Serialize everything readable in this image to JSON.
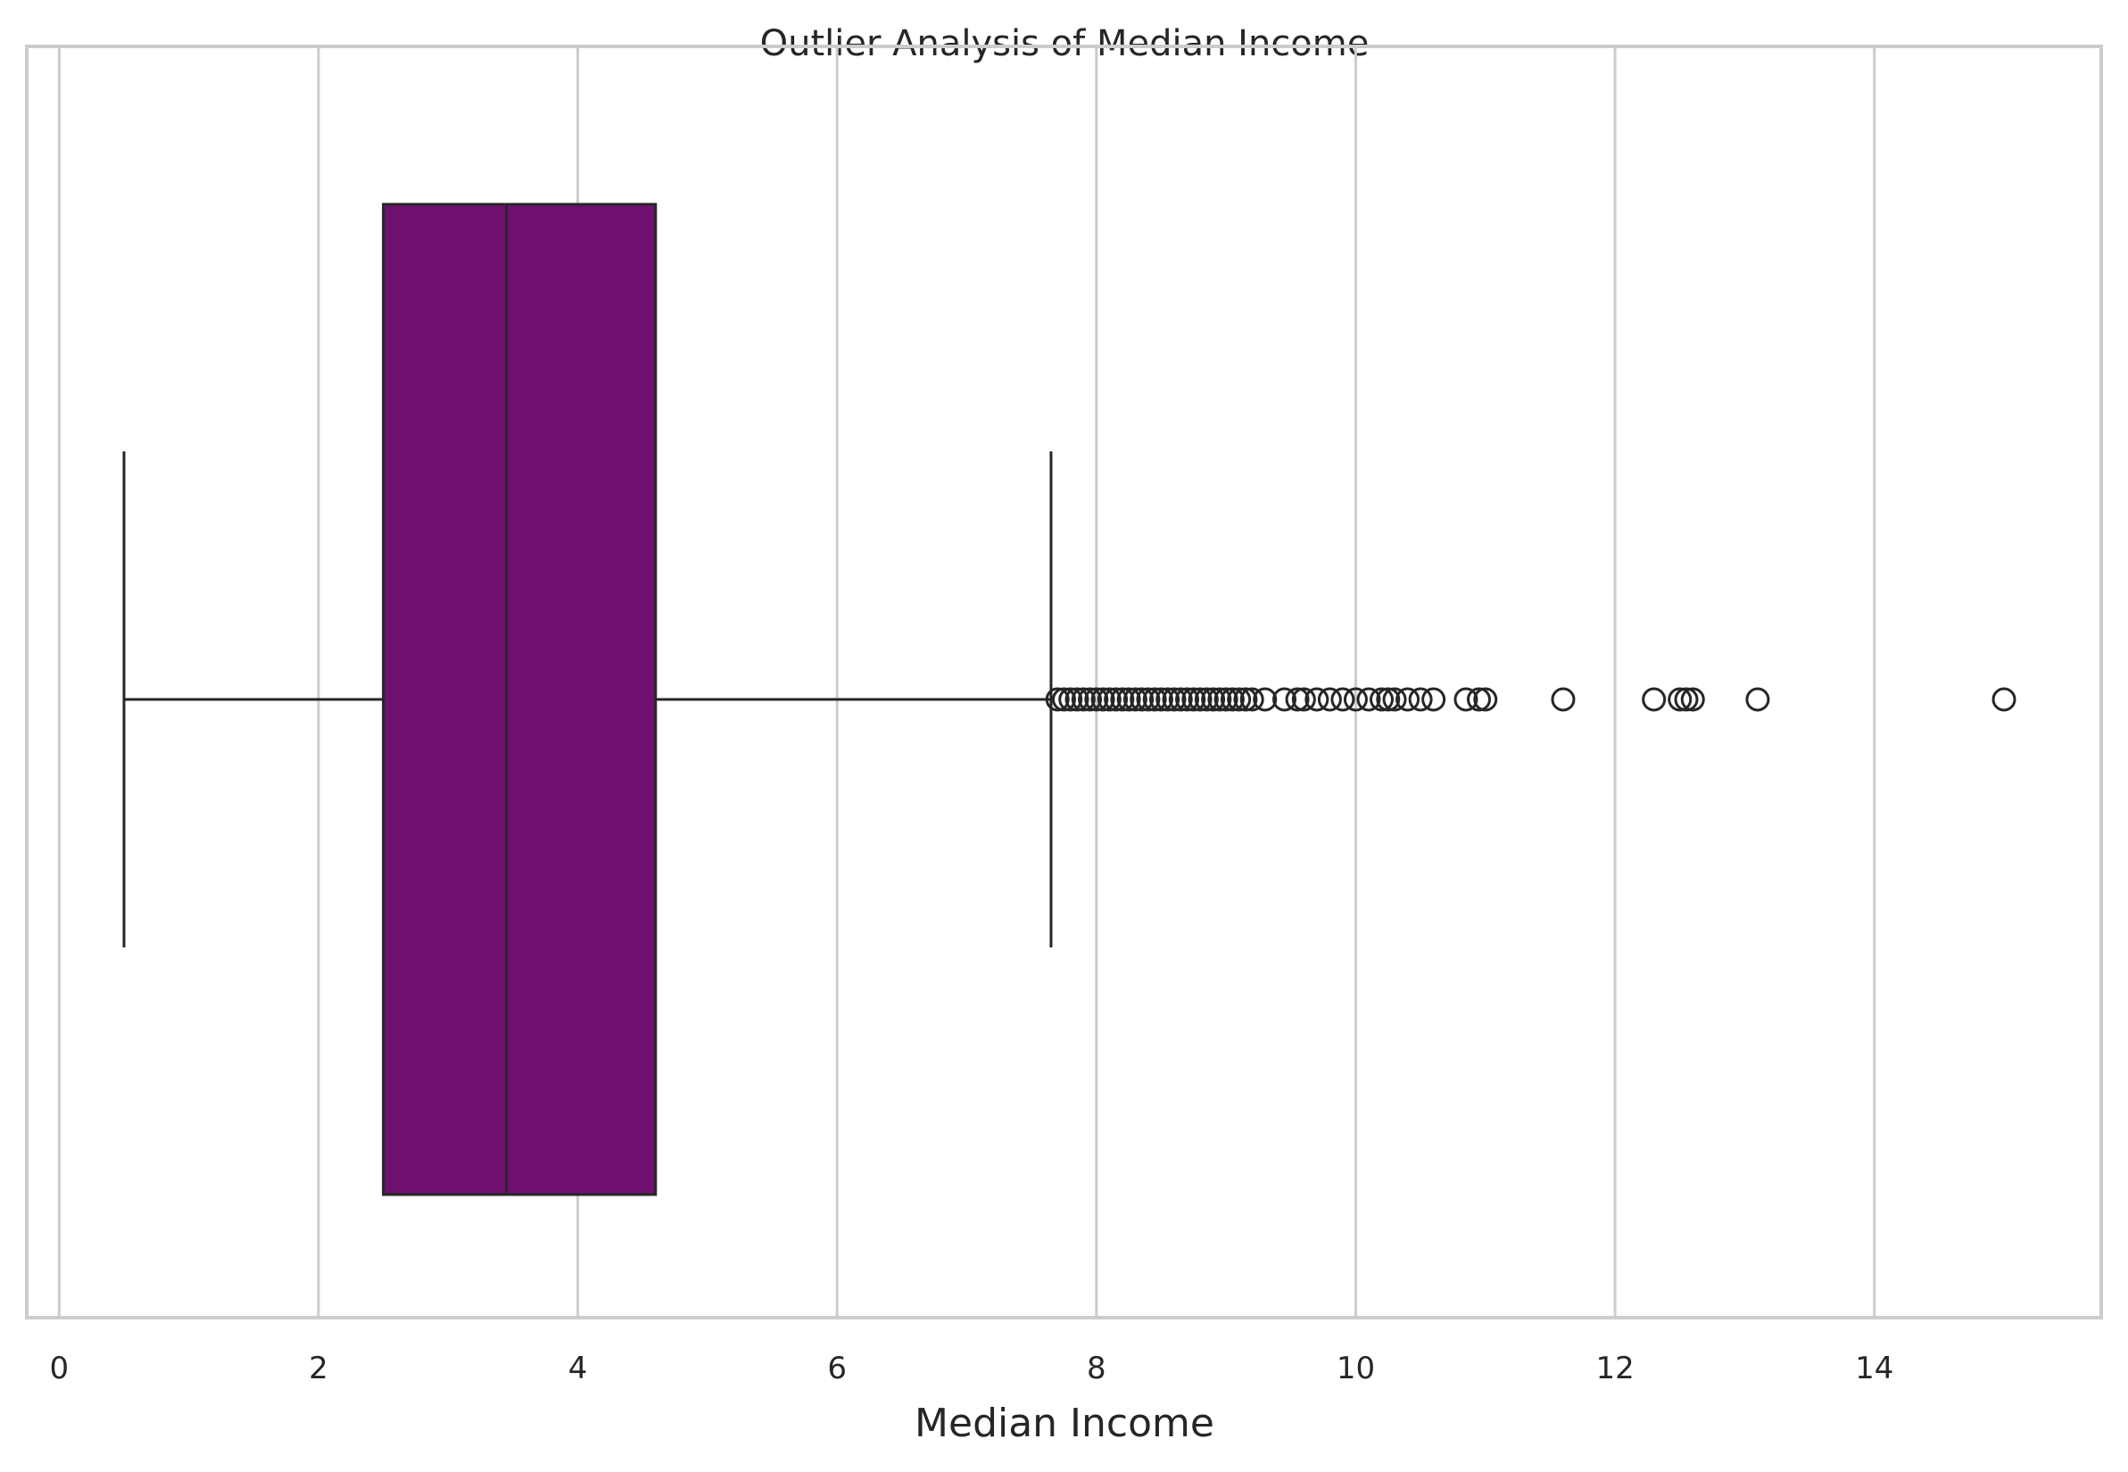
{
  "chart_data": {
    "type": "boxplot",
    "title": "Outlier Analysis of Median Income",
    "xlabel": "Median Income",
    "ylabel": "",
    "orientation": "horizontal",
    "xlim": [
      -0.25,
      15.75
    ],
    "xticks": [
      0,
      2,
      4,
      6,
      8,
      10,
      12,
      14
    ],
    "grid": "vertical",
    "box_color": "#6f106f",
    "box": {
      "whisker_low": 0.5,
      "q1": 2.5,
      "median": 3.45,
      "q3": 4.6,
      "whisker_high": 7.65
    },
    "outliers": [
      7.7,
      7.75,
      7.8,
      7.85,
      7.9,
      7.95,
      8.0,
      8.05,
      8.1,
      8.15,
      8.2,
      8.25,
      8.3,
      8.35,
      8.4,
      8.45,
      8.5,
      8.55,
      8.6,
      8.65,
      8.7,
      8.75,
      8.8,
      8.85,
      8.9,
      8.95,
      9.0,
      9.05,
      9.1,
      9.15,
      9.2,
      9.3,
      9.45,
      9.55,
      9.6,
      9.7,
      9.8,
      9.9,
      10.0,
      10.1,
      10.2,
      10.25,
      10.3,
      10.4,
      10.5,
      10.6,
      10.85,
      10.95,
      11.0,
      11.6,
      12.3,
      12.5,
      12.55,
      12.6,
      13.1,
      15.0
    ]
  }
}
